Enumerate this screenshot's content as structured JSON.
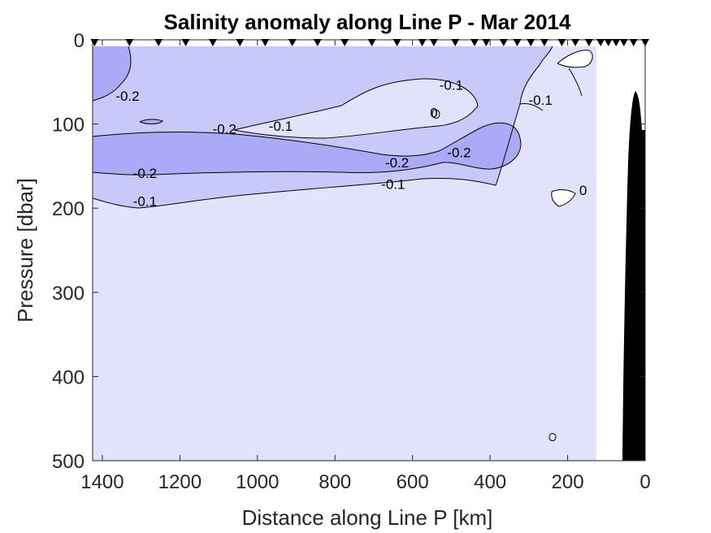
{
  "chart_data": {
    "type": "contour",
    "title": "Salinity anomaly along Line P - Mar 2014",
    "xlabel": "Distance along Line P [km]",
    "ylabel": "Pressure [dbar]",
    "x_reversed": true,
    "y_reversed": true,
    "xlim": [
      1425,
      0
    ],
    "ylim": [
      500,
      0
    ],
    "xticks": [
      1400,
      1200,
      1000,
      800,
      600,
      400,
      200,
      0
    ],
    "yticks": [
      0,
      100,
      200,
      300,
      400,
      500
    ],
    "contour_levels": [
      -0.2,
      -0.1,
      0
    ],
    "fill_colors": {
      "below_-0.2": "#aaaaf8",
      "-0.2_to_-0.1": "#c8c8fa",
      "-0.1_to_0": "#e2e2fc",
      "above_0": "#ffffff"
    },
    "data_extent_km": [
      0,
      1425
    ],
    "no_data_band_km": [
      55,
      125
    ],
    "bathymetry_color": "#000000",
    "station_markers_km": [
      1420,
      1330,
      1255,
      1185,
      1115,
      1045,
      980,
      910,
      845,
      775,
      705,
      640,
      575,
      545,
      490,
      440,
      410,
      365,
      330,
      295,
      260,
      215,
      180,
      145,
      115,
      95,
      75,
      55,
      30,
      0
    ],
    "contour_labels": [
      {
        "text": "-0.2",
        "x_km": 1335,
        "p_dbar": 68
      },
      {
        "text": "-0.2",
        "x_km": 1085,
        "p_dbar": 107
      },
      {
        "text": "-0.1",
        "x_km": 940,
        "p_dbar": 104
      },
      {
        "text": "-0.1",
        "x_km": 500,
        "p_dbar": 55
      },
      {
        "text": "0",
        "x_km": 545,
        "p_dbar": 88
      },
      {
        "text": "-0.2",
        "x_km": 480,
        "p_dbar": 135
      },
      {
        "text": "-0.1",
        "x_km": 270,
        "p_dbar": 73
      },
      {
        "text": "-0.2",
        "x_km": 1290,
        "p_dbar": 160
      },
      {
        "text": "-0.2",
        "x_km": 640,
        "p_dbar": 147
      },
      {
        "text": "-0.1",
        "x_km": 650,
        "p_dbar": 173
      },
      {
        "text": "-0.1",
        "x_km": 1290,
        "p_dbar": 193
      },
      {
        "text": "0",
        "x_km": 160,
        "p_dbar": 180
      }
    ]
  }
}
